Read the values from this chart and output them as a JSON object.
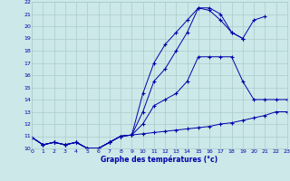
{
  "xlabel": "Graphe des températures (°c)",
  "bg_color": "#cce8e8",
  "grid_color": "#aacccc",
  "line_color": "#0000aa",
  "xmin": 0,
  "xmax": 23,
  "ymin": 10,
  "ymax": 22,
  "yticks": [
    10,
    11,
    12,
    13,
    14,
    15,
    16,
    17,
    18,
    19,
    20,
    21,
    22
  ],
  "xticks": [
    0,
    1,
    2,
    3,
    4,
    5,
    6,
    7,
    8,
    9,
    10,
    11,
    12,
    13,
    14,
    15,
    16,
    17,
    18,
    19,
    20,
    21,
    22,
    23
  ],
  "line1_x": [
    0,
    1,
    2,
    3,
    4,
    5,
    6,
    7,
    8,
    9,
    10,
    11,
    12,
    13,
    14,
    15,
    16,
    17,
    18,
    19,
    20,
    21,
    22,
    23
  ],
  "line1_y": [
    10.9,
    10.3,
    10.5,
    10.3,
    10.5,
    10.0,
    10.0,
    10.5,
    11.0,
    11.1,
    11.2,
    11.3,
    11.4,
    11.5,
    11.6,
    11.7,
    11.8,
    12.0,
    12.1,
    12.3,
    12.5,
    12.7,
    13.0,
    13.0
  ],
  "line2_x": [
    0,
    1,
    2,
    3,
    4,
    5,
    6,
    7,
    8,
    9,
    10,
    11,
    12,
    13,
    14,
    15,
    16,
    17,
    18,
    19,
    20,
    21,
    22,
    23
  ],
  "line2_y": [
    10.9,
    10.3,
    10.5,
    10.3,
    10.5,
    10.0,
    10.0,
    10.5,
    11.0,
    11.1,
    12.0,
    13.5,
    14.0,
    14.5,
    15.5,
    17.5,
    17.5,
    17.5,
    17.5,
    15.5,
    14.0,
    14.0,
    14.0,
    14.0
  ],
  "line3_x": [
    0,
    1,
    2,
    3,
    4,
    5,
    6,
    7,
    8,
    9,
    10,
    11,
    12,
    13,
    14,
    15,
    16,
    17,
    18,
    19,
    20,
    21
  ],
  "line3_y": [
    10.9,
    10.3,
    10.5,
    10.3,
    10.5,
    10.0,
    10.0,
    10.5,
    11.0,
    11.1,
    13.0,
    15.5,
    16.5,
    18.0,
    19.5,
    21.5,
    21.3,
    20.5,
    19.5,
    19.0,
    20.5,
    20.8
  ],
  "line4_x": [
    0,
    1,
    2,
    3,
    4,
    5,
    6,
    7,
    8,
    9,
    10,
    11,
    12,
    13,
    14,
    15,
    16,
    17,
    18,
    19
  ],
  "line4_y": [
    10.9,
    10.3,
    10.5,
    10.3,
    10.5,
    10.0,
    10.0,
    10.5,
    11.0,
    11.1,
    14.5,
    17.0,
    18.5,
    19.5,
    20.5,
    21.5,
    21.5,
    21.0,
    19.5,
    19.0
  ]
}
